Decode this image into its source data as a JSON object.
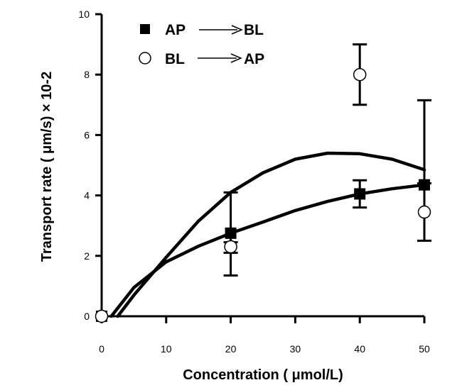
{
  "chart_data": {
    "type": "scatter",
    "title": "",
    "xlabel": "Concentration ( μmol/L)",
    "ylabel": "Transport rate ( μm/s) × 10-2",
    "xlim": [
      0,
      50
    ],
    "ylim": [
      0,
      10
    ],
    "x_ticks": [
      "0",
      "10",
      "20",
      "30",
      "40",
      "50"
    ],
    "y_ticks": [
      "0",
      "2",
      "4",
      "6",
      "8",
      "10"
    ],
    "grid": false,
    "legend_position": "top-left",
    "series": [
      {
        "name": "AP ⟶ BL",
        "legend_from": "AP",
        "legend_to": "BL",
        "marker": "filled-square",
        "color": "#000000",
        "points": [
          {
            "x": 0,
            "y": 0,
            "err_low": 0,
            "err_high": 0
          },
          {
            "x": 20,
            "y": 2.75,
            "err_low": 1.4,
            "err_high": 1.35
          },
          {
            "x": 40,
            "y": 4.05,
            "err_low": 0.45,
            "err_high": 0.45
          },
          {
            "x": 50,
            "y": 4.35,
            "err_low": 1.85,
            "err_high": 2.8
          }
        ],
        "fit_curve": [
          [
            1.5,
            0.0
          ],
          [
            5,
            0.95
          ],
          [
            10,
            1.8
          ],
          [
            15,
            2.32
          ],
          [
            20,
            2.75
          ],
          [
            25,
            3.12
          ],
          [
            30,
            3.5
          ],
          [
            35,
            3.8
          ],
          [
            40,
            4.05
          ],
          [
            45,
            4.22
          ],
          [
            50,
            4.35
          ]
        ]
      },
      {
        "name": "BL ⟶ AP",
        "legend_from": "BL",
        "legend_to": "AP",
        "marker": "open-circle",
        "color": "#000000",
        "points": [
          {
            "x": 0,
            "y": 0,
            "err_low": 0,
            "err_high": 0
          },
          {
            "x": 20,
            "y": 2.3,
            "err_low": 0.2,
            "err_high": 0.15
          },
          {
            "x": 40,
            "y": 8.0,
            "err_low": 1.0,
            "err_high": 1.0
          },
          {
            "x": 50,
            "y": 3.45,
            "err_low": 0.95,
            "err_high": 0.95
          }
        ],
        "fit_curve": [
          [
            2.5,
            0.0
          ],
          [
            5,
            0.7
          ],
          [
            10,
            1.95
          ],
          [
            15,
            3.15
          ],
          [
            20,
            4.1
          ],
          [
            25,
            4.75
          ],
          [
            30,
            5.2
          ],
          [
            35,
            5.4
          ],
          [
            40,
            5.38
          ],
          [
            45,
            5.2
          ],
          [
            50,
            4.85
          ]
        ]
      }
    ]
  }
}
